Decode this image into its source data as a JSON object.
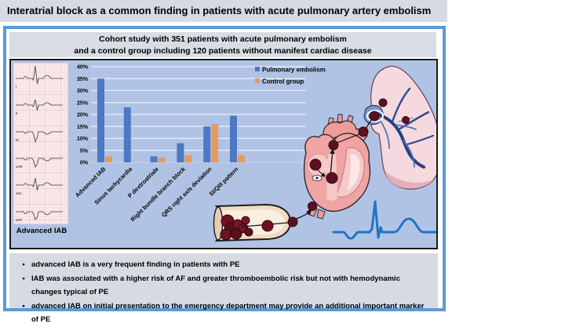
{
  "title": "Interatrial block as a common finding in patients with acute pulmonary artery embolism",
  "cohort_box": {
    "line1": "Cohort study with 351 patients with acute pulmonary embolism",
    "line2": "and a control group including 120 patients without manifest cardiac disease"
  },
  "ecg_panel": {
    "leads": [
      "I",
      "II",
      "III",
      "aVR",
      "aVL",
      "aVF"
    ],
    "caption": "Advanced IAB"
  },
  "chart_data": {
    "type": "bar",
    "title": "",
    "categories": [
      "Advanced IAB",
      "Sinus tachycardia",
      "P dextroatriale",
      "Right bundle branch block",
      "QRS right axis deviation",
      "SI/QIII pattern"
    ],
    "series": [
      {
        "name": "Pulmonary embolism",
        "color": "#4d78c3",
        "values": [
          35,
          23,
          2.5,
          8,
          15,
          19.5
        ]
      },
      {
        "name": "Control group",
        "color": "#e59a62",
        "values": [
          2.5,
          0,
          2,
          3,
          16,
          3
        ]
      }
    ],
    "xlabel": "",
    "ylabel": "",
    "y_unit": "%",
    "ylim": [
      0,
      40
    ],
    "y_step": 5,
    "grid": true,
    "legend_position": "top-right"
  },
  "footer": {
    "marker": "•",
    "bullets": [
      "advanced IAB is a very frequent finding in patients with PE",
      "IAB was associated with a higher risk of AF and greater thromboembolic risk but not with hemodynamic changes typical of PE",
      "advanced IAB on initial presentation to the emergency department may provide an additional important marker of PE"
    ]
  },
  "colors": {
    "frame_blue": "#5b9bd5",
    "panel_blue": "#b1c3e4",
    "box_gray": "#d7dae1",
    "bar_blue": "#4d78c3",
    "bar_orange": "#e59a62",
    "thrombus_red": "#6d1321",
    "ecg_trace_blue": "#1d76c6"
  }
}
